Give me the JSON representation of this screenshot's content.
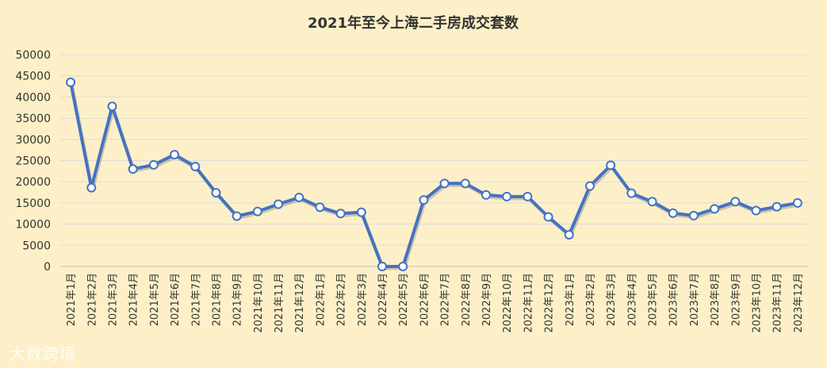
{
  "colors": {
    "background": "#fdf0c8",
    "line": "#4472c4",
    "marker_fill": "#ffffff",
    "grid": "#dcdcdc",
    "text": "#333333"
  },
  "watermark": "大数跨境",
  "chart_data": {
    "type": "line",
    "title": "2021年至今上海二手房成交套数",
    "xlabel": "",
    "ylabel": "",
    "ylim": [
      0,
      50000
    ],
    "yticks": [
      0,
      5000,
      10000,
      15000,
      20000,
      25000,
      30000,
      35000,
      40000,
      45000,
      50000
    ],
    "grid": true,
    "legend": "none",
    "categories": [
      "2021年1月",
      "2021年2月",
      "2021年3月",
      "2021年4月",
      "2021年5月",
      "2021年6月",
      "2021年7月",
      "2021年8月",
      "2021年9月",
      "2021年10月",
      "2021年11月",
      "2021年12月",
      "2022年1月",
      "2022年2月",
      "2022年3月",
      "2022年4月",
      "2022年5月",
      "2022年6月",
      "2022年7月",
      "2022年8月",
      "2022年9月",
      "2022年10月",
      "2022年11月",
      "2022年12月",
      "2023年1月",
      "2023年2月",
      "2023年3月",
      "2023年4月",
      "2023年5月",
      "2023年6月",
      "2023年7月",
      "2023年8月",
      "2023年9月",
      "2023年10月",
      "2023年11月",
      "2023年12月"
    ],
    "series": [
      {
        "name": "",
        "values": [
          43500,
          18600,
          37800,
          23000,
          24000,
          26400,
          23600,
          17400,
          11900,
          13000,
          14700,
          16300,
          14000,
          12500,
          12800,
          0,
          0,
          15700,
          19600,
          19600,
          16900,
          16500,
          16500,
          11700,
          7500,
          19000,
          23900,
          17300,
          15300,
          12600,
          12000,
          13600,
          15300,
          13200,
          14100,
          15000
        ]
      }
    ]
  }
}
